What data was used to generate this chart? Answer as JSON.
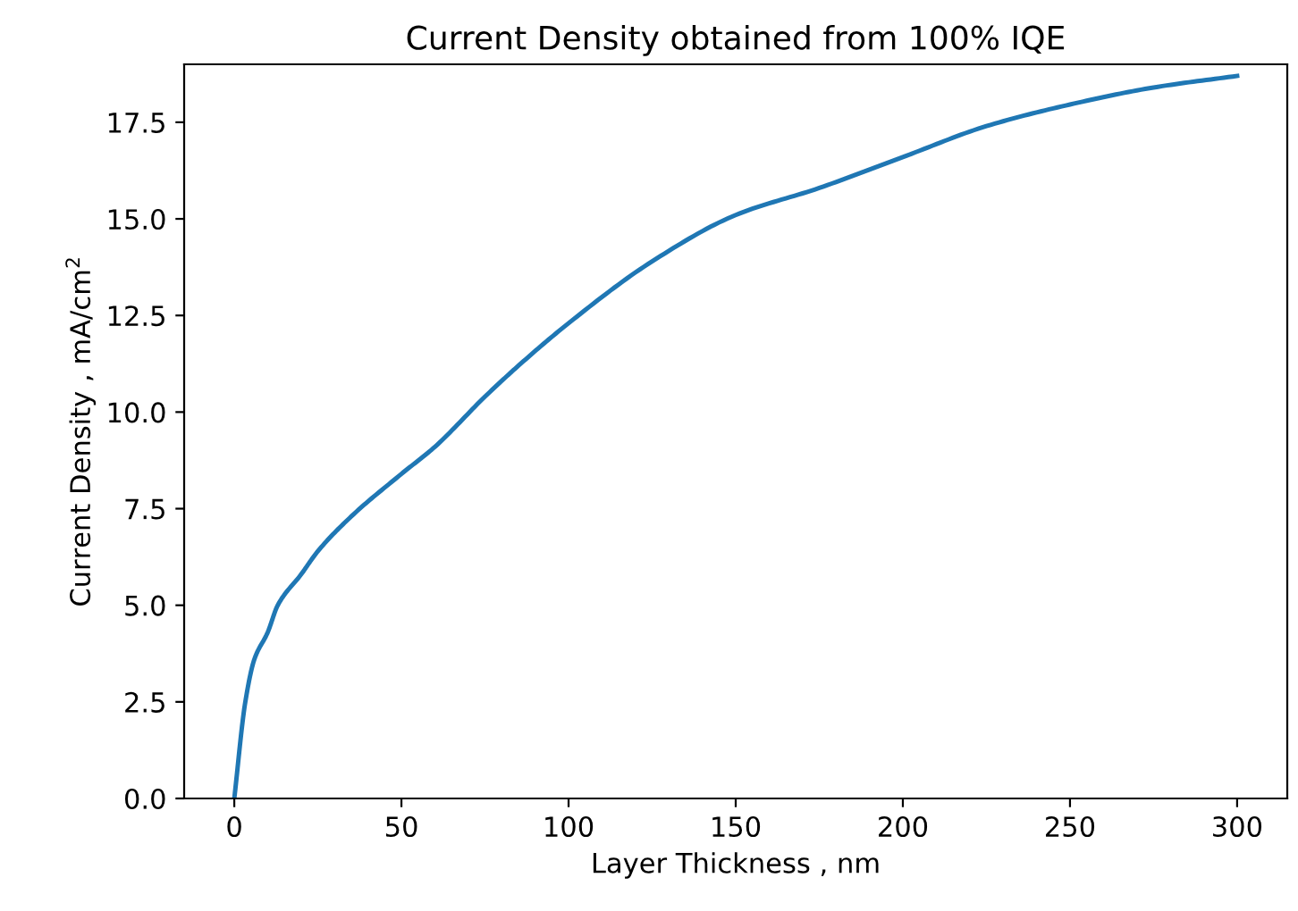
{
  "chart_data": {
    "type": "line",
    "title": "Current Density obtained from 100% IQE",
    "xlabel": "Layer Thickness , nm",
    "ylabel": "Current Density , mA/cm$^{2}$",
    "x": [
      0,
      3.3,
      6,
      10,
      13,
      20,
      25,
      35,
      50,
      60,
      75,
      85,
      100,
      125,
      150,
      175,
      200,
      225,
      250,
      275,
      300
    ],
    "series": [
      {
        "color": "#1f77b4",
        "values": [
          0,
          2.5,
          3.6,
          4.3,
          5.0,
          5.8,
          6.4,
          7.3,
          8.4,
          9.1,
          10.4,
          11.2,
          12.3,
          13.9,
          15.1,
          15.8,
          16.6,
          17.4,
          17.96,
          18.4,
          18.7
        ]
      }
    ],
    "xlim": [
      -15,
      315
    ],
    "ylim": [
      0,
      19
    ],
    "xticks": [
      0,
      50,
      100,
      150,
      200,
      250,
      300
    ],
    "yticks": [
      {
        "value": 0,
        "label": "0.0"
      },
      {
        "value": 2.5,
        "label": "2.5"
      },
      {
        "value": 5,
        "label": "5.0"
      },
      {
        "value": 7.5,
        "label": "7.5"
      },
      {
        "value": 10,
        "label": "10.0"
      },
      {
        "value": 12.5,
        "label": "12.5"
      },
      {
        "value": 15,
        "label": "15.0"
      },
      {
        "value": 17.5,
        "label": "17.5"
      }
    ],
    "grid": false
  }
}
